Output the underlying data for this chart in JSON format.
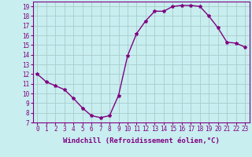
{
  "x": [
    0,
    1,
    2,
    3,
    4,
    5,
    6,
    7,
    8,
    9,
    10,
    11,
    12,
    13,
    14,
    15,
    16,
    17,
    18,
    19,
    20,
    21,
    22,
    23
  ],
  "y": [
    12,
    11.2,
    10.8,
    10.4,
    9.5,
    8.5,
    7.7,
    7.5,
    7.7,
    9.8,
    13.9,
    16.2,
    17.5,
    18.5,
    18.5,
    19.0,
    19.1,
    19.1,
    19.0,
    18.0,
    16.8,
    15.3,
    15.2,
    14.8
  ],
  "line_color": "#800080",
  "marker": "*",
  "marker_size": 3,
  "background_color": "#c8eef0",
  "grid_color": "#aacccc",
  "xlabel": "Windchill (Refroidissement éolien,°C)",
  "ylim": [
    7,
    19.5
  ],
  "xlim": [
    -0.5,
    23.5
  ],
  "yticks": [
    7,
    8,
    9,
    10,
    11,
    12,
    13,
    14,
    15,
    16,
    17,
    18,
    19
  ],
  "xticks": [
    0,
    1,
    2,
    3,
    4,
    5,
    6,
    7,
    8,
    9,
    10,
    11,
    12,
    13,
    14,
    15,
    16,
    17,
    18,
    19,
    20,
    21,
    22,
    23
  ],
  "xtick_labels": [
    "0",
    "1",
    "2",
    "3",
    "4",
    "5",
    "6",
    "7",
    "8",
    "9",
    "10",
    "11",
    "12",
    "13",
    "14",
    "15",
    "16",
    "17",
    "18",
    "19",
    "20",
    "21",
    "22",
    "23"
  ],
  "xlabel_fontsize": 6.5,
  "tick_fontsize": 5.5,
  "line_width": 1.0
}
